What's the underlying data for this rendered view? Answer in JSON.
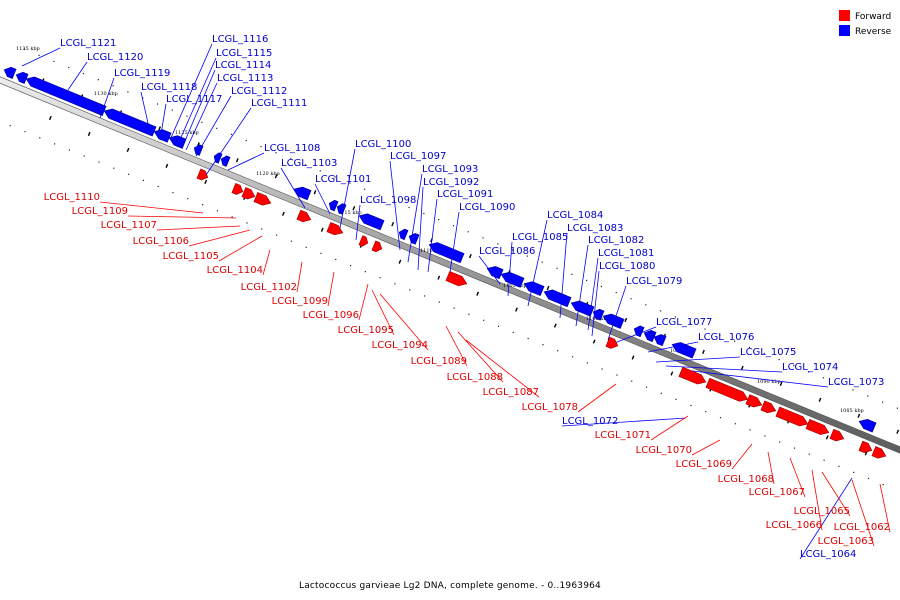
{
  "colors": {
    "forward": "#ff0000",
    "reverse": "#0000ff",
    "label_forward": "#dd0000",
    "label_reverse": "#0000cc",
    "backbone": "#888888"
  },
  "legend": {
    "forward": "Forward",
    "reverse": "Reverse"
  },
  "caption": "Lactococcus garvieae Lg2 DNA, complete genome. - 0..1963964",
  "ticks": [
    "1135 kbp",
    "1130 kbp",
    "1125 kbp",
    "1120 kbp",
    "1115 kbp",
    "1110 kbp",
    "1105 kbp",
    "1100 kbp",
    "1095 kbp",
    "1090 kbp",
    "1085 kbp"
  ],
  "genes_reverse": [
    "LCGL_1121",
    "LCGL_1120",
    "LCGL_1119",
    "LCGL_1118",
    "LCGL_1117",
    "LCGL_1116",
    "LCGL_1115",
    "LCGL_1114",
    "LCGL_1113",
    "LCGL_1112",
    "LCGL_1111",
    "LCGL_1108",
    "LCGL_1103",
    "LCGL_1101",
    "LCGL_1100",
    "LCGL_1098",
    "LCGL_1097",
    "LCGL_1093",
    "LCGL_1092",
    "LCGL_1091",
    "LCGL_1090",
    "LCGL_1086",
    "LCGL_1085",
    "LCGL_1084",
    "LCGL_1083",
    "LCGL_1082",
    "LCGL_1081",
    "LCGL_1080",
    "LCGL_1079",
    "LCGL_1077",
    "LCGL_1076",
    "LCGL_1075",
    "LCGL_1074",
    "LCGL_1073",
    "LCGL_1072",
    "LCGL_1064"
  ],
  "genes_forward": [
    "LCGL_1110",
    "LCGL_1109",
    "LCGL_1107",
    "LCGL_1106",
    "LCGL_1105",
    "LCGL_1104",
    "LCGL_1102",
    "LCGL_1099",
    "LCGL_1096",
    "LCGL_1095",
    "LCGL_1094",
    "LCGL_1089",
    "LCGL_1088",
    "LCGL_1087",
    "LCGL_1078",
    "LCGL_1071",
    "LCGL_1070",
    "LCGL_1069",
    "LCGL_1068",
    "LCGL_1067",
    "LCGL_1066",
    "LCGL_1065",
    "LCGL_1063",
    "LCGL_1062"
  ]
}
